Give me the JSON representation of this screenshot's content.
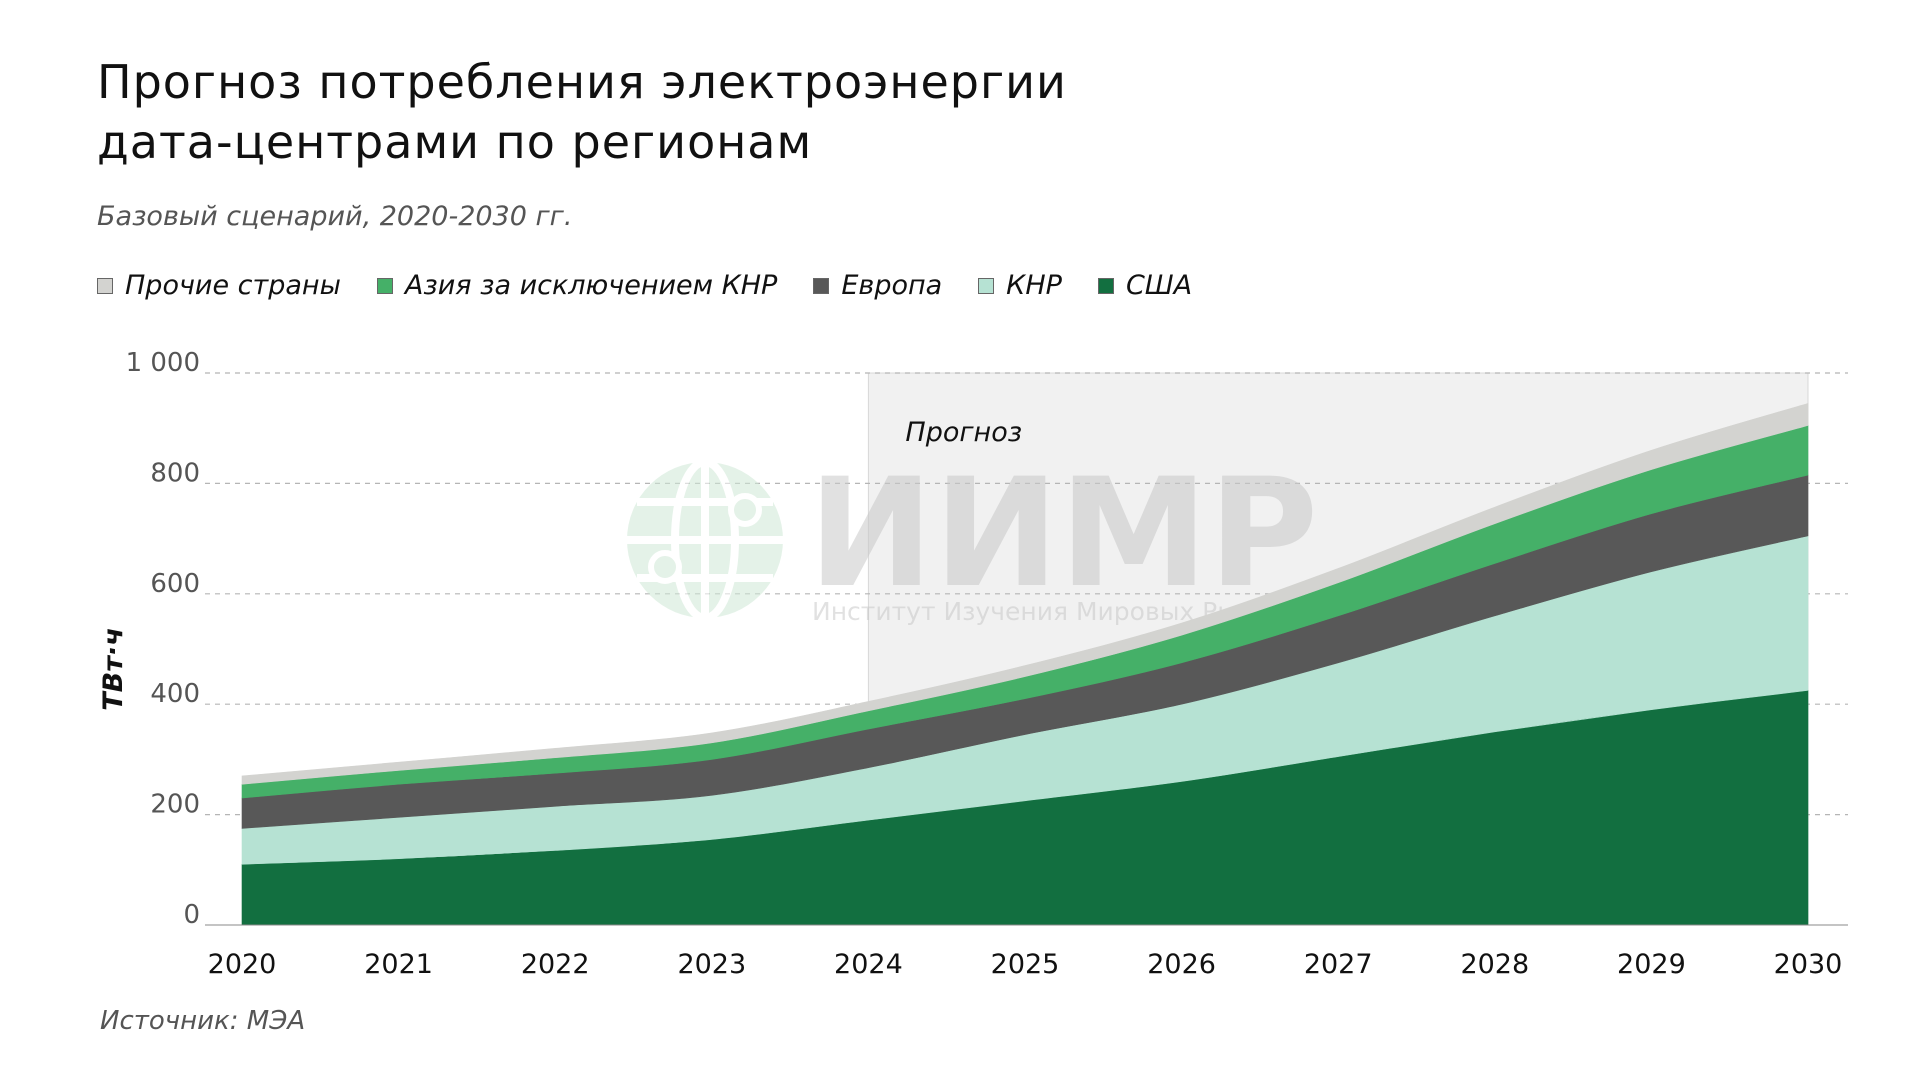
{
  "header": {
    "title_line1": "Прогноз потребления электроэнергии",
    "title_line2": "дата-центрами по регионам",
    "subtitle": "Базовый сценарий, 2020-2030 гг."
  },
  "legend": [
    {
      "label": "Прочие страны",
      "color": "#d3d3d0"
    },
    {
      "label": "Азия за исключением КНР",
      "color": "#45b068"
    },
    {
      "label": "Европа",
      "color": "#585858"
    },
    {
      "label": "КНР",
      "color": "#b6e2d3"
    },
    {
      "label": "США",
      "color": "#126f40"
    }
  ],
  "watermark": {
    "name": "ИИМР",
    "tagline": "Институт Изучения Мировых Рынков"
  },
  "source": "Источник: МЭА",
  "chart_data": {
    "type": "area",
    "stacked": true,
    "ylabel": "ТВт·ч",
    "ylim": [
      0,
      1000
    ],
    "yticks": [
      "0",
      "200",
      "400",
      "600",
      "800",
      "1 000"
    ],
    "x": [
      "2020",
      "2021",
      "2022",
      "2023",
      "2024",
      "2025",
      "2026",
      "2027",
      "2028",
      "2029",
      "2030"
    ],
    "forecast_region": {
      "label": "Прогноз",
      "from": "2024",
      "to": "2030"
    },
    "grid": true,
    "legend_position": "top-left",
    "series": [
      {
        "name": "США",
        "color": "#126f40",
        "values": [
          110,
          120,
          135,
          155,
          190,
          225,
          260,
          305,
          350,
          390,
          425
        ]
      },
      {
        "name": "КНР",
        "color": "#b6e2d3",
        "values": [
          65,
          75,
          80,
          80,
          95,
          120,
          140,
          170,
          210,
          250,
          280
        ]
      },
      {
        "name": "Европа",
        "color": "#585858",
        "values": [
          55,
          60,
          60,
          65,
          70,
          65,
          75,
          85,
          95,
          105,
          110
        ]
      },
      {
        "name": "Азия за исключением КНР",
        "color": "#45b068",
        "values": [
          25,
          25,
          28,
          30,
          33,
          40,
          50,
          60,
          72,
          80,
          90
        ]
      },
      {
        "name": "Прочие страны",
        "color": "#d3d3d0",
        "values": [
          15,
          15,
          17,
          18,
          17,
          20,
          22,
          26,
          30,
          35,
          40
        ]
      }
    ]
  }
}
